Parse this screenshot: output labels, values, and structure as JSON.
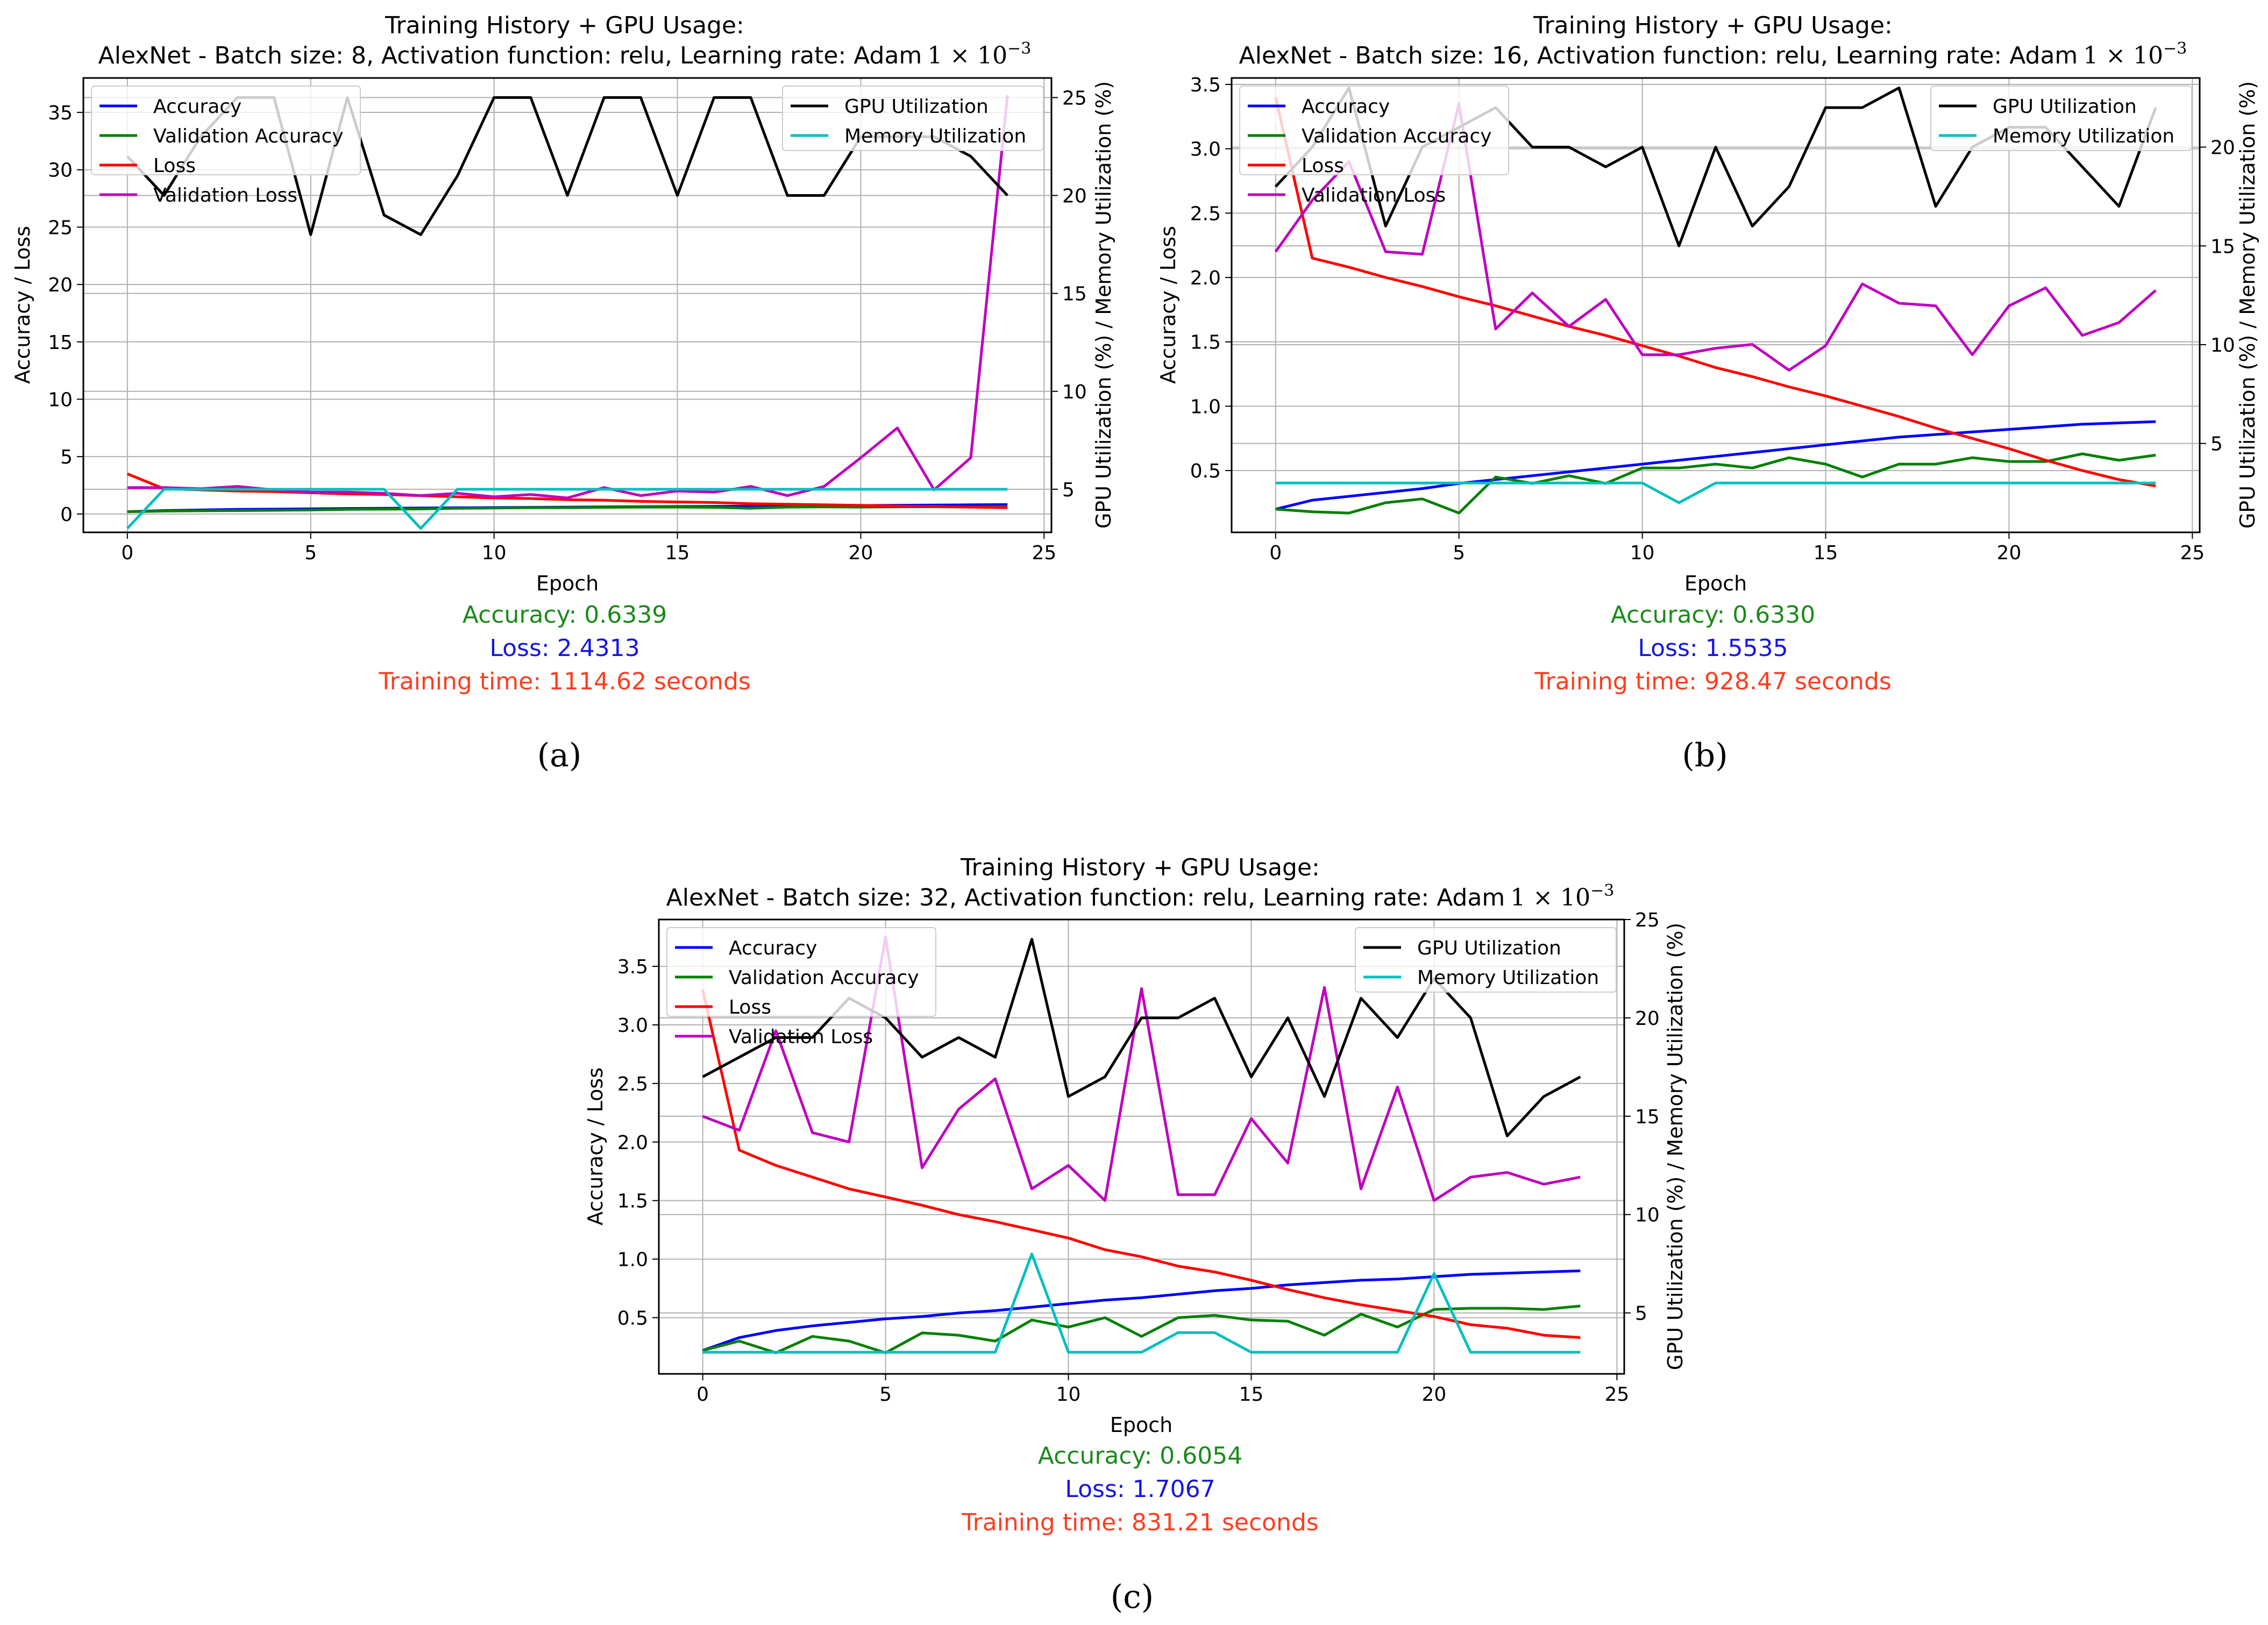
{
  "charts": [
    {
      "panel_label": "(a)",
      "title_line1": "Training History + GPU Usage:",
      "title_line2_prefix": "AlexNet - Batch size: 8, Activation function: relu, Learning rate: Adam",
      "title_lr_mantissa": "1 × 10",
      "title_lr_exponent": "−3",
      "accuracy_text": "Accuracy: 0.6339",
      "loss_text": "Loss: 2.4313",
      "time_text": "Training time: 1114.62 seconds"
    },
    {
      "panel_label": "(b)",
      "title_line1": "Training History + GPU Usage:",
      "title_line2_prefix": "AlexNet - Batch size: 16, Activation function: relu, Learning rate: Adam",
      "title_lr_mantissa": "1 × 10",
      "title_lr_exponent": "−3",
      "accuracy_text": "Accuracy: 0.6330",
      "loss_text": "Loss: 1.5535",
      "time_text": "Training time: 928.47 seconds"
    },
    {
      "panel_label": "(c)",
      "title_line1": "Training History + GPU Usage:",
      "title_line2_prefix": "AlexNet - Batch size: 32, Activation function: relu, Learning rate: Adam",
      "title_lr_mantissa": "1 × 10",
      "title_lr_exponent": "−3",
      "accuracy_text": "Accuracy: 0.6054",
      "loss_text": "Loss: 1.7067",
      "time_text": "Training time: 831.21 seconds"
    }
  ],
  "colors": {
    "accuracy": "#0000ff",
    "validation_accuracy": "#008000",
    "loss": "#ff0000",
    "validation_loss": "#bf00bf",
    "gpu": "#000000",
    "memory": "#00bfbf",
    "acc_text": "#1a8a1a",
    "loss_text": "#1414e6",
    "time_text": "#ff3c1e",
    "grid": "#b0b0b0"
  },
  "chart_data": [
    {
      "type": "line",
      "title": "Training History + GPU Usage: AlexNet - Batch size: 8, Activation function: relu, Learning rate: Adam 1 × 10^−3",
      "xlabel": "Epoch",
      "ylabel": "Accuracy / Loss",
      "y2label": "GPU Utilization (%) / Memory Utilization (%)",
      "xlim": [
        -1.2,
        25.2
      ],
      "ylim": [
        -1.6,
        38
      ],
      "y2lim": [
        2.8,
        26
      ],
      "xticks": [
        0,
        5,
        10,
        15,
        20,
        25
      ],
      "yticks": [
        0,
        5,
        10,
        15,
        20,
        25,
        30,
        35
      ],
      "y2ticks": [
        5,
        10,
        15,
        20,
        25
      ],
      "legend_left": [
        "Accuracy",
        "Validation Accuracy",
        "Loss",
        "Validation Loss"
      ],
      "legend_right": [
        "GPU Utilization",
        "Memory Utilization"
      ],
      "x": [
        0,
        1,
        2,
        3,
        4,
        5,
        6,
        7,
        8,
        9,
        10,
        11,
        12,
        13,
        14,
        15,
        16,
        17,
        18,
        19,
        20,
        21,
        22,
        23,
        24
      ],
      "series": [
        {
          "name": "Accuracy",
          "axis": "left",
          "values": [
            0.2,
            0.3,
            0.35,
            0.4,
            0.42,
            0.45,
            0.48,
            0.5,
            0.52,
            0.54,
            0.56,
            0.58,
            0.6,
            0.62,
            0.63,
            0.65,
            0.66,
            0.68,
            0.7,
            0.72,
            0.74,
            0.76,
            0.78,
            0.8,
            0.82
          ]
        },
        {
          "name": "Validation Accuracy",
          "axis": "left",
          "values": [
            0.2,
            0.25,
            0.28,
            0.3,
            0.32,
            0.35,
            0.4,
            0.42,
            0.44,
            0.5,
            0.52,
            0.55,
            0.55,
            0.58,
            0.6,
            0.6,
            0.58,
            0.5,
            0.6,
            0.62,
            0.6,
            0.62,
            0.63,
            0.6,
            0.63
          ]
        },
        {
          "name": "Loss",
          "axis": "left",
          "values": [
            3.5,
            2.2,
            2.1,
            2.0,
            1.95,
            1.85,
            1.75,
            1.7,
            1.6,
            1.5,
            1.4,
            1.35,
            1.25,
            1.2,
            1.1,
            1.05,
            1.0,
            0.9,
            0.85,
            0.8,
            0.75,
            0.7,
            0.65,
            0.6,
            0.55
          ]
        },
        {
          "name": "Validation Loss",
          "axis": "left",
          "values": [
            2.3,
            2.3,
            2.2,
            2.4,
            2.1,
            1.9,
            1.9,
            1.8,
            1.6,
            1.8,
            1.5,
            1.7,
            1.4,
            2.3,
            1.6,
            2.0,
            1.9,
            2.4,
            1.6,
            2.4,
            4.9,
            7.5,
            2.1,
            4.9,
            36.5
          ]
        },
        {
          "name": "GPU Utilization",
          "axis": "right",
          "values": [
            22,
            20,
            23,
            25,
            25,
            18,
            25,
            19,
            18,
            21,
            25,
            25,
            20,
            25,
            25,
            20,
            25,
            25,
            20,
            20,
            23,
            23,
            23,
            22,
            20
          ]
        },
        {
          "name": "Memory Utilization",
          "axis": "right",
          "values": [
            3,
            5,
            5,
            5,
            5,
            5,
            5,
            5,
            3,
            5,
            5,
            5,
            5,
            5,
            5,
            5,
            5,
            5,
            5,
            5,
            5,
            5,
            5,
            5,
            5
          ]
        }
      ]
    },
    {
      "type": "line",
      "title": "Training History + GPU Usage: AlexNet - Batch size: 16, Activation function: relu, Learning rate: Adam 1 × 10^−3",
      "xlabel": "Epoch",
      "ylabel": "Accuracy / Loss",
      "y2label": "GPU Utilization (%) / Memory Utilization (%)",
      "xlim": [
        -1.2,
        25.2
      ],
      "ylim": [
        0.02,
        3.55
      ],
      "y2lim": [
        0.5,
        23.5
      ],
      "xticks": [
        0,
        5,
        10,
        15,
        20,
        25
      ],
      "yticks": [
        0.5,
        1.0,
        1.5,
        2.0,
        2.5,
        3.0,
        3.5
      ],
      "y2ticks": [
        5,
        10,
        15,
        20
      ],
      "legend_left": [
        "Accuracy",
        "Validation Accuracy",
        "Loss",
        "Validation Loss"
      ],
      "legend_right": [
        "GPU Utilization",
        "Memory Utilization"
      ],
      "x": [
        0,
        1,
        2,
        3,
        4,
        5,
        6,
        7,
        8,
        9,
        10,
        11,
        12,
        13,
        14,
        15,
        16,
        17,
        18,
        19,
        20,
        21,
        22,
        23,
        24
      ],
      "series": [
        {
          "name": "Accuracy",
          "axis": "left",
          "values": [
            0.2,
            0.27,
            0.3,
            0.33,
            0.36,
            0.4,
            0.43,
            0.46,
            0.49,
            0.52,
            0.55,
            0.58,
            0.61,
            0.64,
            0.67,
            0.7,
            0.73,
            0.76,
            0.78,
            0.8,
            0.82,
            0.84,
            0.86,
            0.87,
            0.88
          ]
        },
        {
          "name": "Validation Accuracy",
          "axis": "left",
          "values": [
            0.2,
            0.18,
            0.17,
            0.25,
            0.28,
            0.17,
            0.45,
            0.4,
            0.46,
            0.4,
            0.52,
            0.52,
            0.55,
            0.52,
            0.6,
            0.55,
            0.45,
            0.55,
            0.55,
            0.6,
            0.57,
            0.57,
            0.63,
            0.58,
            0.62
          ]
        },
        {
          "name": "Loss",
          "axis": "left",
          "values": [
            3.4,
            2.15,
            2.08,
            2.0,
            1.93,
            1.85,
            1.78,
            1.7,
            1.62,
            1.55,
            1.47,
            1.39,
            1.3,
            1.23,
            1.15,
            1.08,
            1.0,
            0.92,
            0.83,
            0.75,
            0.67,
            0.58,
            0.5,
            0.43,
            0.38
          ]
        },
        {
          "name": "Validation Loss",
          "axis": "left",
          "values": [
            2.2,
            2.6,
            2.9,
            2.2,
            2.18,
            3.35,
            1.6,
            1.88,
            1.62,
            1.83,
            1.4,
            1.4,
            1.45,
            1.48,
            1.28,
            1.47,
            1.95,
            1.8,
            1.78,
            1.4,
            1.78,
            1.92,
            1.55,
            1.65,
            1.9
          ]
        },
        {
          "name": "GPU Utilization",
          "axis": "right",
          "values": [
            18,
            20,
            23,
            16,
            20,
            21,
            22,
            20,
            20,
            19,
            20,
            15,
            20,
            16,
            18,
            22,
            22,
            23,
            17,
            20,
            21,
            21,
            19,
            17,
            22
          ]
        },
        {
          "name": "Memory Utilization",
          "axis": "right",
          "values": [
            3,
            3,
            3,
            3,
            3,
            3,
            3,
            3,
            3,
            3,
            3,
            2,
            3,
            3,
            3,
            3,
            3,
            3,
            3,
            3,
            3,
            3,
            3,
            3,
            3
          ]
        }
      ]
    },
    {
      "type": "line",
      "title": "Training History + GPU Usage: AlexNet - Batch size: 32, Activation function: relu, Learning rate: Adam 1 × 10^−3",
      "xlabel": "Epoch",
      "ylabel": "Accuracy / Loss",
      "y2label": "GPU Utilization (%) / Memory Utilization (%)",
      "xlim": [
        -1.2,
        25.2
      ],
      "ylim": [
        0.02,
        3.9
      ],
      "y2lim": [
        1.9,
        25
      ],
      "xticks": [
        0,
        5,
        10,
        15,
        20,
        25
      ],
      "yticks": [
        0.5,
        1.0,
        1.5,
        2.0,
        2.5,
        3.0,
        3.5
      ],
      "y2ticks": [
        5,
        10,
        15,
        20,
        25
      ],
      "legend_left": [
        "Accuracy",
        "Validation Accuracy",
        "Loss",
        "Validation Loss"
      ],
      "legend_right": [
        "GPU Utilization",
        "Memory Utilization"
      ],
      "x": [
        0,
        1,
        2,
        3,
        4,
        5,
        6,
        7,
        8,
        9,
        10,
        11,
        12,
        13,
        14,
        15,
        16,
        17,
        18,
        19,
        20,
        21,
        22,
        23,
        24
      ],
      "series": [
        {
          "name": "Accuracy",
          "axis": "left",
          "values": [
            0.22,
            0.33,
            0.39,
            0.43,
            0.46,
            0.49,
            0.51,
            0.54,
            0.56,
            0.59,
            0.62,
            0.65,
            0.67,
            0.7,
            0.73,
            0.75,
            0.78,
            0.8,
            0.82,
            0.83,
            0.85,
            0.87,
            0.88,
            0.89,
            0.9
          ]
        },
        {
          "name": "Validation Accuracy",
          "axis": "left",
          "values": [
            0.22,
            0.3,
            0.2,
            0.34,
            0.3,
            0.2,
            0.37,
            0.35,
            0.3,
            0.48,
            0.42,
            0.5,
            0.34,
            0.5,
            0.52,
            0.48,
            0.47,
            0.35,
            0.53,
            0.42,
            0.57,
            0.58,
            0.58,
            0.57,
            0.6
          ]
        },
        {
          "name": "Loss",
          "axis": "left",
          "values": [
            3.3,
            1.93,
            1.8,
            1.7,
            1.6,
            1.53,
            1.46,
            1.38,
            1.32,
            1.25,
            1.18,
            1.08,
            1.02,
            0.94,
            0.89,
            0.82,
            0.74,
            0.67,
            0.61,
            0.56,
            0.51,
            0.44,
            0.41,
            0.35,
            0.33
          ]
        },
        {
          "name": "Validation Loss",
          "axis": "left",
          "values": [
            2.22,
            2.1,
            2.95,
            2.08,
            2.0,
            3.75,
            1.78,
            2.28,
            2.54,
            1.6,
            1.8,
            1.5,
            3.31,
            1.55,
            1.55,
            2.2,
            1.82,
            3.32,
            1.6,
            2.47,
            1.5,
            1.7,
            1.74,
            1.64,
            1.7
          ]
        },
        {
          "name": "GPU Utilization",
          "axis": "right",
          "values": [
            17,
            18,
            19,
            19,
            21,
            20,
            18,
            19,
            18,
            24,
            16,
            17,
            20,
            20,
            21,
            17,
            20,
            16,
            21,
            19,
            22,
            20,
            14,
            16,
            17
          ]
        },
        {
          "name": "Memory Utilization",
          "axis": "right",
          "values": [
            3,
            3,
            3,
            3,
            3,
            3,
            3,
            3,
            3,
            8,
            3,
            3,
            3,
            4,
            4,
            3,
            3,
            3,
            3,
            3,
            7,
            3,
            3,
            3,
            3
          ]
        }
      ]
    }
  ]
}
